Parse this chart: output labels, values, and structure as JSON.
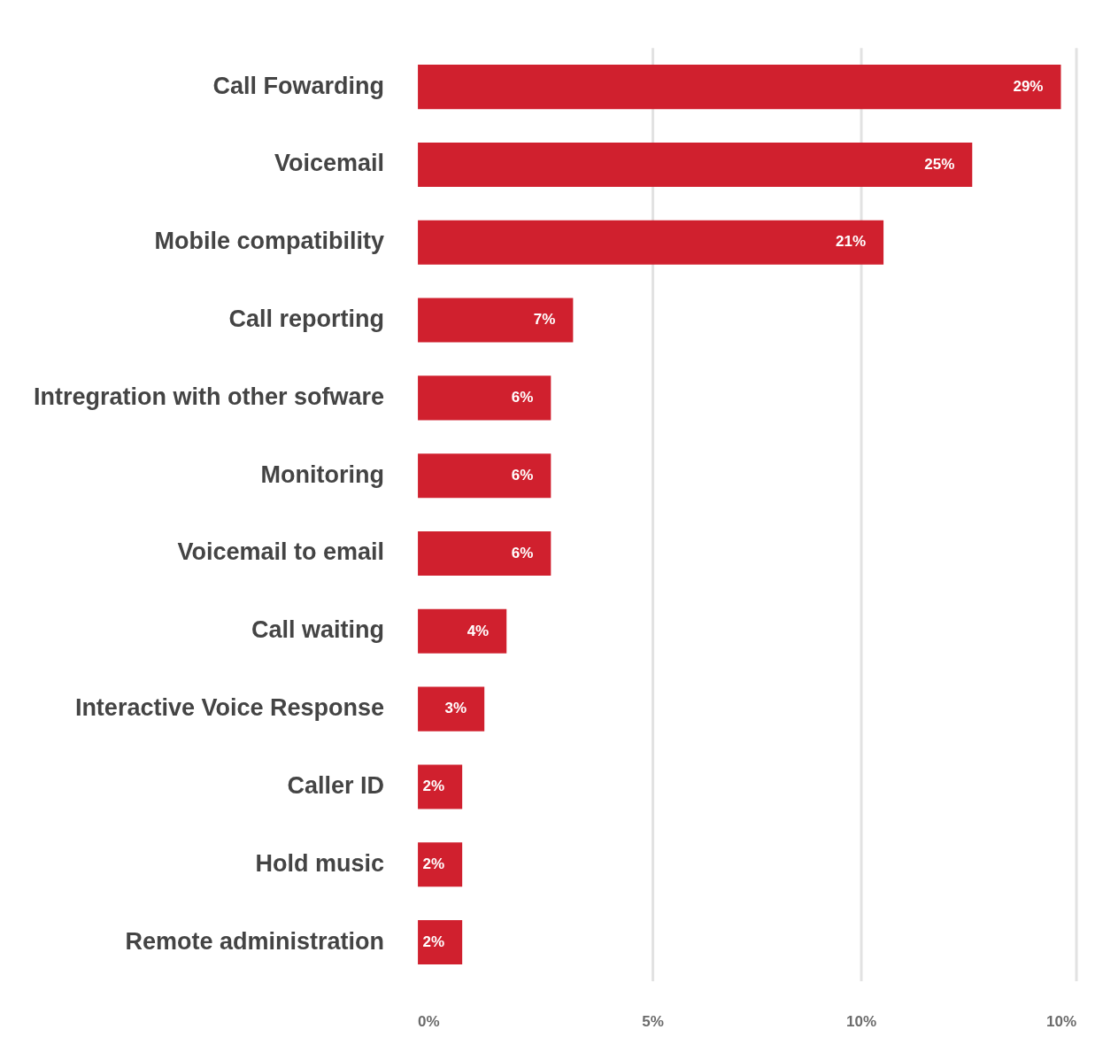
{
  "chart_data": {
    "type": "bar",
    "orientation": "horizontal",
    "categories": [
      "Call Fowarding",
      "Voicemail",
      "Mobile compatibility",
      "Call reporting",
      "Intregration with other sofware",
      "Monitoring",
      "Voicemail to email",
      "Call waiting",
      "Interactive Voice Response",
      "Caller ID",
      "Hold music",
      "Remote administration"
    ],
    "values": [
      29,
      25,
      21,
      7,
      6,
      6,
      6,
      4,
      3,
      2,
      2,
      2
    ],
    "value_labels": [
      "29%",
      "25%",
      "21%",
      "7%",
      "6%",
      "6%",
      "6%",
      "4%",
      "3%",
      "2%",
      "2%",
      "2%"
    ],
    "color": "#d0202e",
    "xlim": [
      0,
      29.7
    ],
    "ref_lines": [
      {
        "axis": "x",
        "value": 10.6,
        "color": "#e2e2e2"
      },
      {
        "axis": "x",
        "value": 20,
        "color": "#e2e2e2"
      },
      {
        "axis": "x",
        "value": 29.7,
        "color": "#e2e2e2"
      }
    ],
    "annotations": [
      "0%",
      "5%",
      "10%",
      "10%"
    ],
    "legend": false
  }
}
